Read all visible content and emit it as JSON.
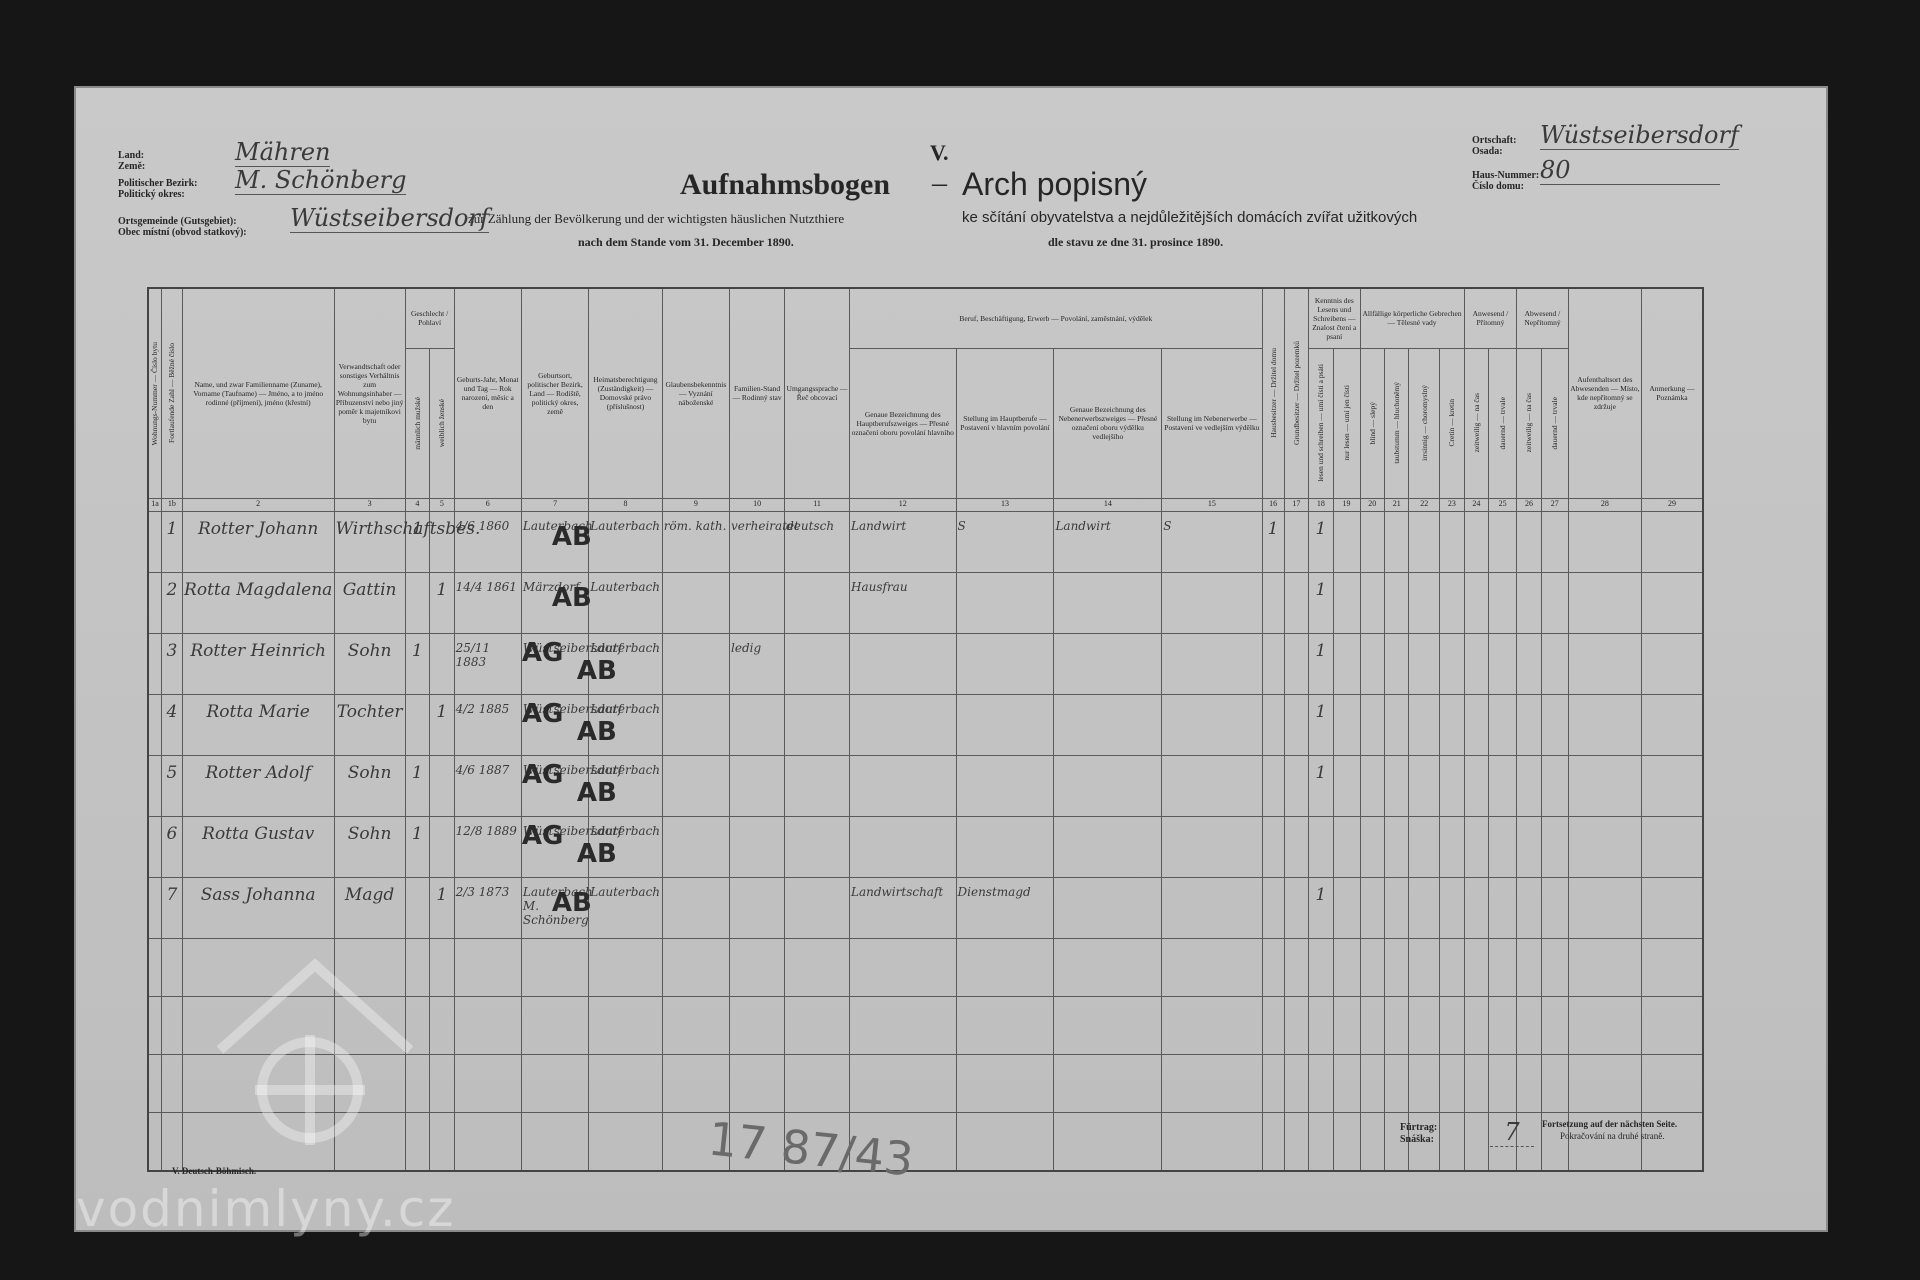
{
  "header": {
    "form_number": "V.",
    "title_de": "Aufnahmsbogen",
    "title_dash": "–",
    "title_cz": "Arch popisný",
    "subtitle_de": "zur Zählung der Bevölkerung und der wichtigsten häuslichen Nutzthiere",
    "date_de": "nach dem Stande vom 31. December 1890.",
    "subtitle_cz": "ke sčítání obyvatelstva a nejdůležitějších domácích zvířat užitkových",
    "date_cz": "dle stavu ze dne 31. prosince 1890."
  },
  "left_fields": [
    {
      "label_de": "Land:",
      "label_cz": "Země:",
      "value": "Mähren"
    },
    {
      "label_de": "Politischer Bezirk:",
      "label_cz": "Politický okres:",
      "value": "M. Schönberg"
    },
    {
      "label_de": "Ortsgemeinde (Gutsgebiet):",
      "label_cz": "Obec místní (obvod statkový):",
      "value": "Wüstseibersdorf"
    }
  ],
  "right_fields": [
    {
      "label_de": "Ortschaft:",
      "label_cz": "Osada:",
      "value": "Wüstseibersdorf"
    },
    {
      "label_de": "Haus-Nummer:",
      "label_cz": "Číslo domu:",
      "value": "80"
    }
  ],
  "table": {
    "columns": [
      {
        "number": "1a",
        "heading": "Wohnungs-Nummer — Číslo bytu"
      },
      {
        "number": "1b",
        "heading": "Fortlaufende Zahl — Běžné číslo"
      },
      {
        "number": "2",
        "heading": "Name, und zwar Familienname (Zuname), Vorname (Taufname) — Jméno, a to jméno rodinné (příjmení), jméno (křestní)"
      },
      {
        "number": "3",
        "heading": "Verwandtschaft oder sonstiges Verhältnis zum Wohnungsinhaber — Příbuzenství nebo jiný poměr k majetníkovi bytu"
      },
      {
        "number": "4",
        "heading": "männlich mužské"
      },
      {
        "number": "5",
        "heading": "weiblich ženské"
      },
      {
        "number": "6",
        "heading": "Geburts-Jahr, Monat und Tag — Rok narození, měsíc a den"
      },
      {
        "number": "7",
        "heading": "Geburtsort, politischer Bezirk, Land — Rodiště, politický okres, země"
      },
      {
        "number": "8",
        "heading": "Heimatsberechtigung (Zuständigkeit) — Domovské právo (příslušnost)"
      },
      {
        "number": "9",
        "heading": "Glaubensbekenntnis — Vyznání náboženské"
      },
      {
        "number": "10",
        "heading": "Familien-Stand — Rodinný stav"
      },
      {
        "number": "11",
        "heading": "Umgangssprache — Řeč obcovací"
      },
      {
        "number": "12",
        "heading": "Genaue Bezeichnung des Hauptberufszweiges — Přesné označení oboru povolání hlavního"
      },
      {
        "number": "13",
        "heading": "Stellung im Hauptberufe — Postavení v hlavním povolání"
      },
      {
        "number": "14",
        "heading": "Genaue Bezeichnung des Nebenerwerbszweiges — Přesné označení oboru výdělku vedlejšího"
      },
      {
        "number": "15",
        "heading": "Stellung im Nebenerwerbe — Postavení ve vedlejším výdělku"
      },
      {
        "number": "16",
        "heading": "Hausbesitzer — Držitel domu"
      },
      {
        "number": "17",
        "heading": "Grundbesitzer — Držitel pozemků"
      },
      {
        "number": "18",
        "heading": "lesen und schreiben — umí čísti a psáti"
      },
      {
        "number": "19",
        "heading": "nur lesen — umí jen čísti"
      },
      {
        "number": "20",
        "heading": "blind — slepý"
      },
      {
        "number": "21",
        "heading": "taubstumm — hluchoněmý"
      },
      {
        "number": "22",
        "heading": "irrsinnig — choromyslný"
      },
      {
        "number": "23",
        "heading": "Cretin — kretin"
      },
      {
        "number": "24",
        "heading": "zeitweilig — na čas"
      },
      {
        "number": "25",
        "heading": "dauernd — trvale"
      },
      {
        "number": "26",
        "heading": "zeitweilig — na čas"
      },
      {
        "number": "27",
        "heading": "dauernd — trvale"
      },
      {
        "number": "28",
        "heading": "Aufenthaltsort des Abwesenden — Místo, kde nepřítomný se zdržuje"
      },
      {
        "number": "29",
        "heading": "Anmerkung — Poznámka"
      }
    ],
    "groups": [
      {
        "label": "Geschlecht / Pohlaví",
        "from": 4,
        "to": 5
      },
      {
        "label": "Beruf, Beschäftigung, Erwerb — Povolání, zaměstnání, výdělek",
        "from": 12,
        "to": 15
      },
      {
        "label": "Kenntnis des Lesens und Schreibens — Znalost čtení a psaní",
        "from": 18,
        "to": 19
      },
      {
        "label": "Allfällige körperliche Gebrechen — Tělesné vady",
        "from": 20,
        "to": 23
      },
      {
        "label": "Anwesend / Přítomný",
        "from": 24,
        "to": 25
      },
      {
        "label": "Abwesend / Nepřítomný",
        "from": 26,
        "to": 27
      }
    ],
    "rows": [
      {
        "number": "1",
        "name": "Rotter Johann",
        "relation": "Wirthschaftsbes.",
        "male": "1",
        "birth": "4/6 1860",
        "birthplace": "Lauterbach",
        "domicile": "Lauterbach",
        "religion": "röm. kath.",
        "status": "verheiratet",
        "language": "deutsch",
        "occupation": "Landwirt",
        "position": "S",
        "secondary": "Landwirt",
        "secondary_position": "S",
        "house_owner": "1",
        "reads_writes": "1",
        "stamps": [
          "AB"
        ]
      },
      {
        "number": "2",
        "name": "Rotta Magdalena",
        "relation": "Gattin",
        "female": "1",
        "birth": "14/4 1861",
        "birthplace": "Märzdorf",
        "domicile": "Lauterbach",
        "occupation": "Hausfrau",
        "reads_writes": "1",
        "stamps": [
          "AB"
        ]
      },
      {
        "number": "3",
        "name": "Rotter Heinrich",
        "relation": "Sohn",
        "male": "1",
        "birth": "25/11 1883",
        "birthplace": "Wüstseibersdorf",
        "domicile": "Lauterbach",
        "status": "ledig",
        "reads_writes": "1",
        "stamps": [
          "AG",
          "AB"
        ]
      },
      {
        "number": "4",
        "name": "Rotta Marie",
        "relation": "Tochter",
        "female": "1",
        "birth": "4/2 1885",
        "birthplace": "Wüstseibersdorf",
        "domicile": "Lauterbach",
        "reads_writes": "1",
        "stamps": [
          "AG",
          "AB"
        ]
      },
      {
        "number": "5",
        "name": "Rotter Adolf",
        "relation": "Sohn",
        "male": "1",
        "birth": "4/6 1887",
        "birthplace": "Wüstseibersdorf",
        "domicile": "Lauterbach",
        "reads_writes": "1",
        "stamps": [
          "AG",
          "AB"
        ]
      },
      {
        "number": "6",
        "name": "Rotta Gustav",
        "relation": "Sohn",
        "male": "1",
        "birth": "12/8 1889",
        "birthplace": "Wüstseibersdorf",
        "domicile": "Lauterbach",
        "stamps": [
          "AG",
          "AB"
        ]
      },
      {
        "number": "7",
        "name": "Sass Johanna",
        "relation": "Magd",
        "female": "1",
        "birth": "2/3 1873",
        "birthplace": "Lauterbach M. Schönberg",
        "domicile": "Lauterbach",
        "occupation": "Landwirtschaft",
        "position": "Dienstmagd",
        "reads_writes": "1",
        "stamps": [
          "AB"
        ]
      }
    ]
  },
  "footer": {
    "printer": "V. Deutsch-Böhmisch.",
    "carry_label_de": "Fürtrag:",
    "carry_label_cz": "Snáška:",
    "carry_value": "7",
    "continued_de": "Fortsetzung auf der nächsten Seite.",
    "continued_cz": "Pokračování na druhé straně.",
    "pencil_note": "17 87/43"
  },
  "watermark": "vodnimlyny.cz"
}
